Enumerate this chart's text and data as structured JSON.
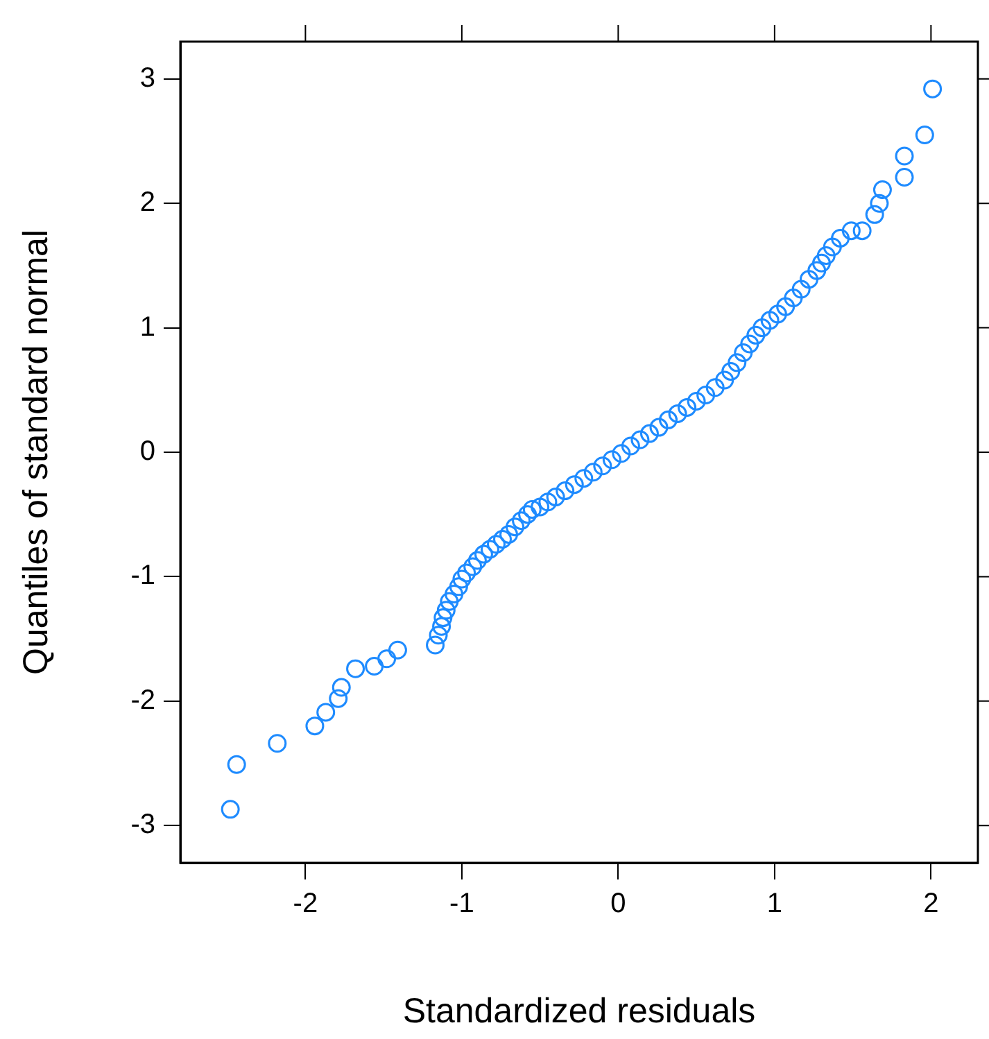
{
  "chart_data": {
    "type": "scatter",
    "xlabel": "Standardized residuals",
    "ylabel": "Quantiles of standard normal",
    "xlim": [
      -2.8,
      2.3
    ],
    "ylim": [
      -3.3,
      3.3
    ],
    "xticks": [
      -2,
      -1,
      0,
      1,
      2
    ],
    "yticks": [
      -3,
      -2,
      -1,
      0,
      1,
      2,
      3
    ],
    "grid": false,
    "legend": false,
    "marker": "circle",
    "series": [
      {
        "color": "#1e8bff",
        "x": [
          -2.48,
          -2.44,
          -2.18,
          -1.94,
          -1.87,
          -1.79,
          -1.77,
          -1.68,
          -1.56,
          -1.48,
          -1.41,
          -1.17,
          -1.15,
          -1.13,
          -1.12,
          -1.1,
          -1.08,
          -1.05,
          -1.02,
          -1.0,
          -0.97,
          -0.93,
          -0.9,
          -0.86,
          -0.82,
          -0.78,
          -0.74,
          -0.7,
          -0.66,
          -0.62,
          -0.58,
          -0.55,
          -0.5,
          -0.45,
          -0.4,
          -0.34,
          -0.28,
          -0.22,
          -0.16,
          -0.1,
          -0.04,
          0.02,
          0.08,
          0.14,
          0.2,
          0.26,
          0.32,
          0.38,
          0.44,
          0.5,
          0.56,
          0.62,
          0.68,
          0.72,
          0.76,
          0.8,
          0.84,
          0.88,
          0.92,
          0.97,
          1.02,
          1.07,
          1.12,
          1.17,
          1.22,
          1.27,
          1.3,
          1.33,
          1.37,
          1.42,
          1.49,
          1.56,
          1.64,
          1.67,
          1.69,
          1.83,
          1.83,
          1.96,
          2.01
        ],
        "values": [
          -2.87,
          -2.51,
          -2.34,
          -2.2,
          -2.09,
          -1.98,
          -1.89,
          -1.74,
          -1.72,
          -1.66,
          -1.59,
          -1.55,
          -1.47,
          -1.4,
          -1.33,
          -1.27,
          -1.2,
          -1.14,
          -1.08,
          -1.02,
          -0.97,
          -0.92,
          -0.87,
          -0.82,
          -0.78,
          -0.74,
          -0.7,
          -0.66,
          -0.6,
          -0.55,
          -0.5,
          -0.46,
          -0.44,
          -0.4,
          -0.36,
          -0.31,
          -0.26,
          -0.21,
          -0.16,
          -0.11,
          -0.06,
          -0.01,
          0.05,
          0.1,
          0.15,
          0.2,
          0.26,
          0.31,
          0.36,
          0.41,
          0.46,
          0.52,
          0.58,
          0.65,
          0.72,
          0.8,
          0.87,
          0.94,
          1.0,
          1.06,
          1.11,
          1.17,
          1.24,
          1.31,
          1.39,
          1.46,
          1.52,
          1.58,
          1.65,
          1.72,
          1.78,
          1.78,
          1.91,
          2.0,
          2.11,
          2.21,
          2.38,
          2.55,
          2.92
        ]
      }
    ]
  }
}
